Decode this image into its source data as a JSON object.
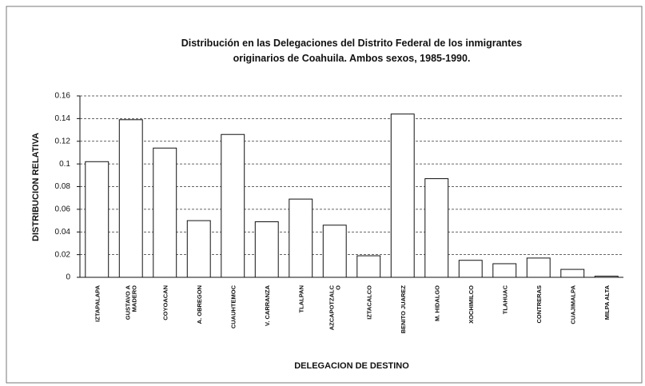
{
  "chart_data": {
    "type": "bar",
    "title": [
      "Distribución en las Delegaciones del Distrito Federal de los inmigrantes",
      "originarios de Coahuila. Ambos sexos, 1985-1990."
    ],
    "x_label": "DELEGACION DE DESTINO",
    "y_label": "DISTRIBUCION RELATIVA",
    "categories": [
      "IZTAPALAPA",
      "GUSTAVO A\nMADERO",
      "COYOACAN",
      "A. OBREGON",
      "CUAUHTEMOC",
      "V. CARRANZA",
      "TLALPAN",
      "AZCAPOTZALC\nO",
      "IZTACALCO",
      "BENITO JUAREZ",
      "M. HIDALGO",
      "XOCHIMILCO",
      "TLAHUAC",
      "CONTRERAS",
      "CUAJIMALPA",
      "MILPA ALTA"
    ],
    "values": [
      0.102,
      0.139,
      0.114,
      0.05,
      0.126,
      0.049,
      0.069,
      0.046,
      0.019,
      0.144,
      0.087,
      0.015,
      0.012,
      0.017,
      0.007,
      0.001
    ],
    "color": "#ffffff",
    "ylim": [
      0,
      0.16
    ],
    "yticks": [
      0,
      0.02,
      0.04,
      0.06,
      0.08,
      0.1,
      0.12,
      0.14,
      0.16
    ],
    "grid": true
  }
}
